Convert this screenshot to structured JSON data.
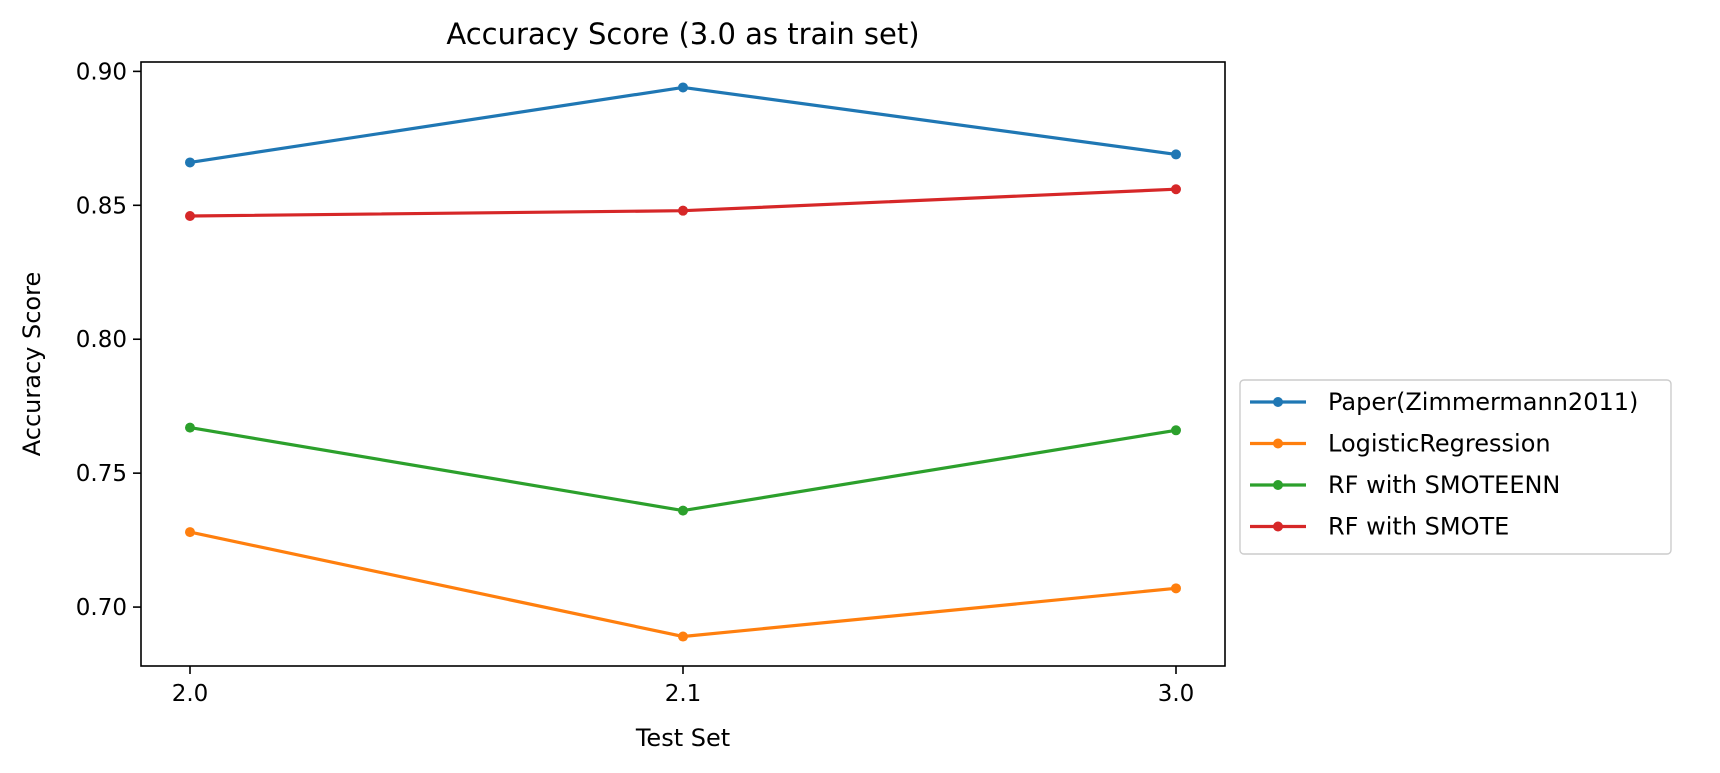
{
  "chart_data": {
    "type": "line",
    "title": "Accuracy Score (3.0 as train set)",
    "xlabel": "Test Set",
    "ylabel": "Accuracy Score",
    "categories": [
      "2.0",
      "2.1",
      "3.0"
    ],
    "ylim": [
      0.678,
      0.9035
    ],
    "yticks": [
      "0.70",
      "0.75",
      "0.80",
      "0.85",
      "0.90"
    ],
    "grid": false,
    "legend_position": "center-right outside",
    "series": [
      {
        "name": "Paper(Zimmermann2011)",
        "color": "#1f77b4",
        "values": [
          0.866,
          0.894,
          0.869
        ]
      },
      {
        "name": "LogisticRegression",
        "color": "#ff7f0e",
        "values": [
          0.728,
          0.689,
          0.707
        ]
      },
      {
        "name": "RF with SMOTEENN",
        "color": "#2ca02c",
        "values": [
          0.767,
          0.736,
          0.766
        ]
      },
      {
        "name": "RF with SMOTE",
        "color": "#d62728",
        "values": [
          0.846,
          0.848,
          0.856
        ]
      }
    ]
  }
}
